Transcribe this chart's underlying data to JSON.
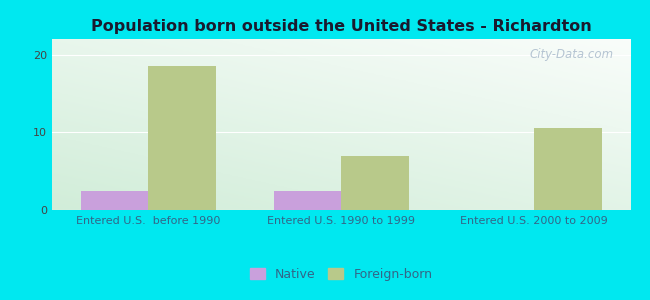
{
  "title": "Population born outside the United States - Richardton",
  "categories": [
    "Entered U.S.  before 1990",
    "Entered U.S. 1990 to 1999",
    "Entered U.S. 2000 to 2009"
  ],
  "native_values": [
    2.5,
    2.5,
    0
  ],
  "foreign_values": [
    18.5,
    7.0,
    10.5
  ],
  "native_color": "#c9a0dc",
  "foreign_color": "#b8c98a",
  "background_outer": "#00e8f0",
  "ylim": [
    0,
    22
  ],
  "yticks": [
    0,
    10,
    20
  ],
  "bar_width": 0.35,
  "title_fontsize": 11.5,
  "tick_fontsize": 8,
  "legend_fontsize": 9,
  "watermark": "City-Data.com"
}
